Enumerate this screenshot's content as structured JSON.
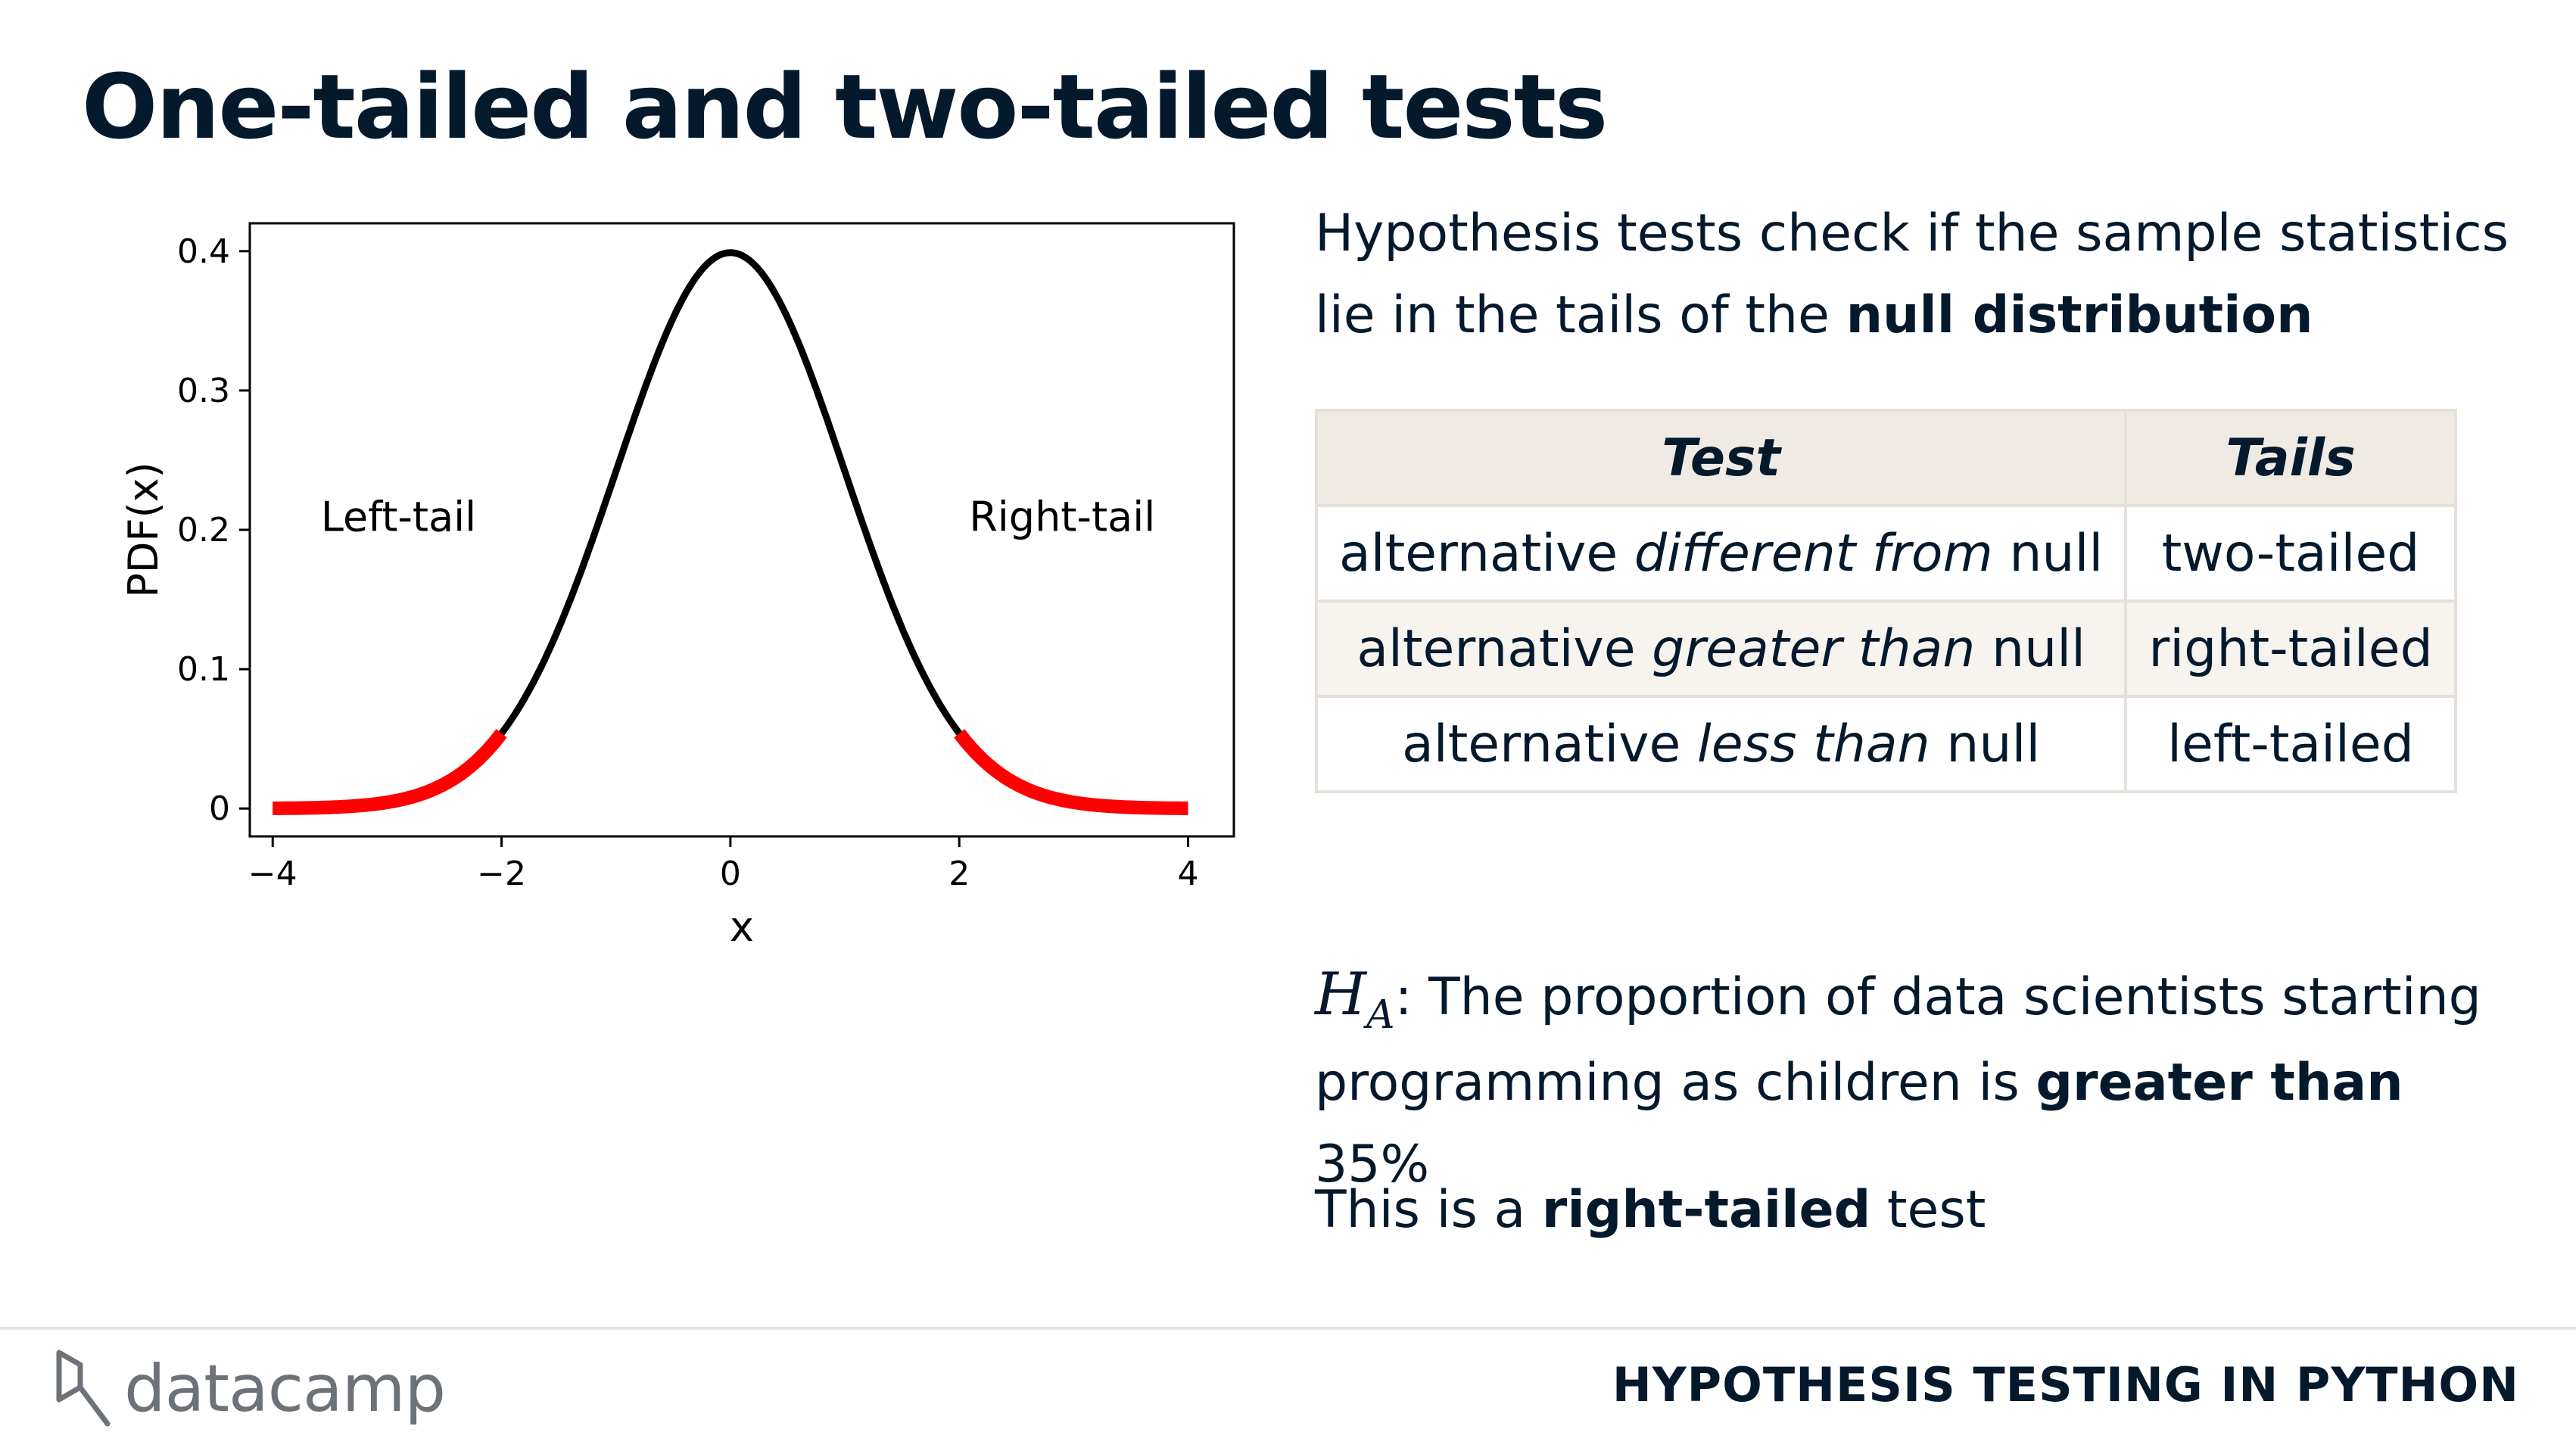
{
  "slide": {
    "title": "One-tailed and two-tailed tests"
  },
  "intro": {
    "text_before": "Hypothesis tests check if the sample statistics lie in the tails of the ",
    "emphasis": "null distribution"
  },
  "table": {
    "headers": {
      "test": "Test",
      "tails": "Tails"
    },
    "rows": [
      {
        "prefix": "alternative ",
        "italic": "different from",
        "suffix": " null",
        "tails": "two-tailed"
      },
      {
        "prefix": "alternative ",
        "italic": "greater than",
        "suffix": " null",
        "tails": "right-tailed"
      },
      {
        "prefix": "alternative ",
        "italic": "less than",
        "suffix": " null",
        "tails": "left-tailed"
      }
    ]
  },
  "hypothesis": {
    "symbol": "H",
    "subscript": "A",
    "text_before": ": The proportion of data scientists starting programming as children is ",
    "emphasis": "greater than",
    "text_after": " 35%"
  },
  "conclusion": {
    "before": "This is a ",
    "emphasis": "right-tailed",
    "after": " test"
  },
  "footer": {
    "logo_text": "datacamp",
    "logo_icon": "datacamp-logo-icon",
    "course": "HYPOTHESIS TESTING IN PYTHON"
  },
  "chart_data": {
    "type": "line",
    "xlabel": "x",
    "ylabel": "PDF(x)",
    "xlim": [
      -4.2,
      4.4
    ],
    "ylim": [
      -0.02,
      0.42
    ],
    "xticks": [
      -4,
      -2,
      0,
      2,
      4
    ],
    "xtick_labels": [
      "−4",
      "−2",
      "0",
      "2",
      "4"
    ],
    "yticks": [
      0,
      0.1,
      0.2,
      0.3,
      0.4
    ],
    "ytick_labels": [
      "0",
      "0.1",
      "0.2",
      "0.3",
      "0.4"
    ],
    "grid": false,
    "series": [
      {
        "values_from": "normal pdf",
        "x_range": [
          -2,
          2
        ],
        "color": "#000000"
      },
      {
        "values_from": "normal pdf",
        "x_range": [
          -4,
          -2
        ],
        "color": "#ff0000"
      },
      {
        "values_from": "normal pdf",
        "x_range": [
          2,
          4
        ],
        "color": "#ff0000"
      }
    ],
    "annotations": [
      {
        "text": "Left-tail",
        "x": -2.9,
        "y": 0.21
      },
      {
        "text": "Right-tail",
        "x": 2.9,
        "y": 0.21
      }
    ]
  }
}
